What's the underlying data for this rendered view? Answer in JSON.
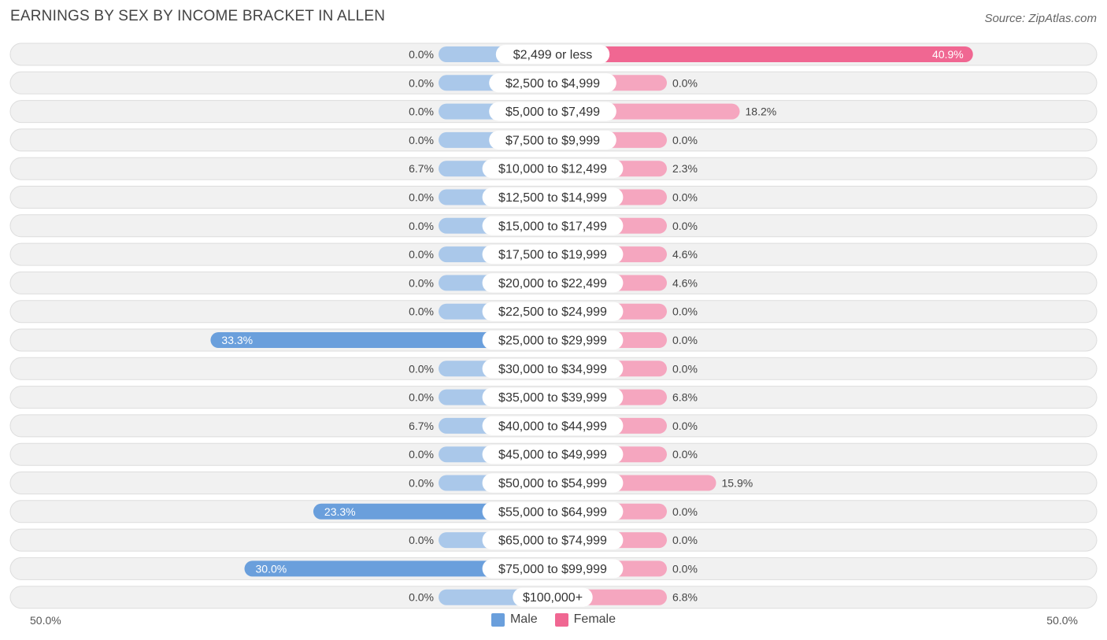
{
  "title": "EARNINGS BY SEX BY INCOME BRACKET IN ALLEN",
  "source": "Source: ZipAtlas.com",
  "colors": {
    "male": "#6a9fdc",
    "male_light": "#aac8ea",
    "female": "#f06792",
    "female_light": "#f5a6bf",
    "row_bg": "#f1f1f1",
    "row_border": "#dddddd"
  },
  "legend": {
    "male": "Male",
    "female": "Female"
  },
  "axis": {
    "left": "50.0%",
    "right": "50.0%"
  },
  "chart_data": {
    "type": "bar",
    "orientation": "horizontal-diverging",
    "title": "EARNINGS BY SEX BY INCOME BRACKET IN ALLEN",
    "xlim": [
      -50,
      50
    ],
    "categories": [
      "$2,499 or less",
      "$2,500 to $4,999",
      "$5,000 to $7,499",
      "$7,500 to $9,999",
      "$10,000 to $12,499",
      "$12,500 to $14,999",
      "$15,000 to $17,499",
      "$17,500 to $19,999",
      "$20,000 to $22,499",
      "$22,500 to $24,999",
      "$25,000 to $29,999",
      "$30,000 to $34,999",
      "$35,000 to $39,999",
      "$40,000 to $44,999",
      "$45,000 to $49,999",
      "$50,000 to $54,999",
      "$55,000 to $64,999",
      "$65,000 to $74,999",
      "$75,000 to $99,999",
      "$100,000+"
    ],
    "series": [
      {
        "name": "Male",
        "values": [
          0.0,
          0.0,
          0.0,
          0.0,
          6.7,
          0.0,
          0.0,
          0.0,
          0.0,
          0.0,
          33.3,
          0.0,
          0.0,
          6.7,
          0.0,
          0.0,
          23.3,
          0.0,
          30.0,
          0.0
        ],
        "labels": [
          "0.0%",
          "0.0%",
          "0.0%",
          "0.0%",
          "6.7%",
          "0.0%",
          "0.0%",
          "0.0%",
          "0.0%",
          "0.0%",
          "33.3%",
          "0.0%",
          "0.0%",
          "6.7%",
          "0.0%",
          "0.0%",
          "23.3%",
          "0.0%",
          "30.0%",
          "0.0%"
        ]
      },
      {
        "name": "Female",
        "values": [
          40.9,
          0.0,
          18.2,
          0.0,
          2.3,
          0.0,
          0.0,
          4.6,
          4.6,
          0.0,
          0.0,
          0.0,
          6.8,
          0.0,
          0.0,
          15.9,
          0.0,
          0.0,
          0.0,
          6.8
        ],
        "labels": [
          "40.9%",
          "0.0%",
          "18.2%",
          "0.0%",
          "2.3%",
          "0.0%",
          "0.0%",
          "4.6%",
          "4.6%",
          "0.0%",
          "0.0%",
          "0.0%",
          "6.8%",
          "0.0%",
          "0.0%",
          "15.9%",
          "0.0%",
          "0.0%",
          "0.0%",
          "6.8%"
        ]
      }
    ]
  }
}
